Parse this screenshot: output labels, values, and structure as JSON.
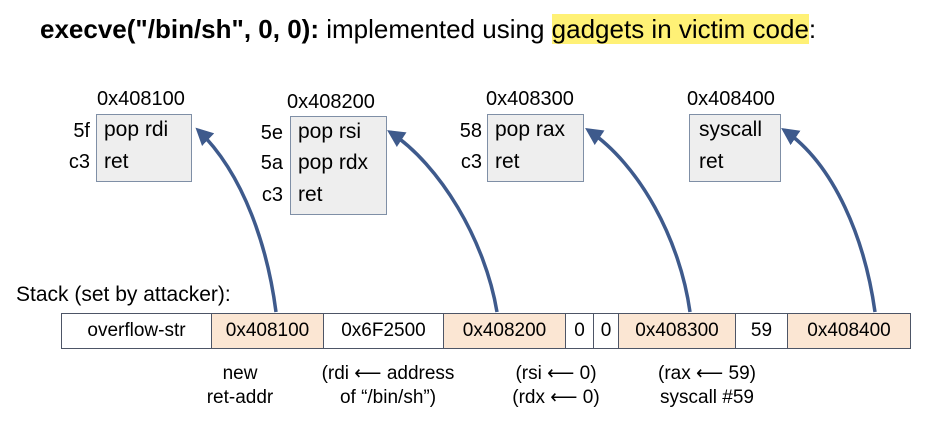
{
  "title": {
    "command": "execve(\"/bin/sh\",  0,  0):",
    "text": " implemented using ",
    "highlight": "gadgets in victim code",
    "tail": ":"
  },
  "gadgets": [
    {
      "address": "0x408100",
      "lines": [
        {
          "byte": "5f",
          "instr": "pop rdi"
        },
        {
          "byte": "c3",
          "instr": "ret"
        }
      ]
    },
    {
      "address": "0x408200",
      "lines": [
        {
          "byte": "5e",
          "instr": "pop rsi"
        },
        {
          "byte": "5a",
          "instr": "pop rdx"
        },
        {
          "byte": "c3",
          "instr": "ret"
        }
      ]
    },
    {
      "address": "0x408300",
      "lines": [
        {
          "byte": "58",
          "instr": "pop rax"
        },
        {
          "byte": "c3",
          "instr": "ret"
        }
      ]
    },
    {
      "address": "0x408400",
      "lines": [
        {
          "byte": "",
          "instr": "syscall"
        },
        {
          "byte": "",
          "instr": "ret"
        }
      ]
    }
  ],
  "stack_label": "Stack (set by attacker):",
  "stack": [
    {
      "text": "overflow-str",
      "highlight": false
    },
    {
      "text": "0x408100",
      "highlight": true
    },
    {
      "text": "0x6F2500",
      "highlight": false
    },
    {
      "text": "0x408200",
      "highlight": true
    },
    {
      "text": "0",
      "highlight": false
    },
    {
      "text": "0",
      "highlight": false
    },
    {
      "text": "0x408300",
      "highlight": true
    },
    {
      "text": "59",
      "highlight": false
    },
    {
      "text": "0x408400",
      "highlight": true
    }
  ],
  "notes": [
    {
      "line1": "new",
      "line2": "ret-addr"
    },
    {
      "line1": "(rdi ⟵ address",
      "line2": "of “/bin/sh”)"
    },
    {
      "line1": "(rsi ⟵ 0)",
      "line2": "(rdx ⟵ 0)"
    },
    {
      "line1": "(rax ⟵ 59)",
      "line2": "syscall #59"
    }
  ],
  "colors": {
    "highlight": "#fff176",
    "stack_highlight": "#fbe6d3",
    "arrow": "#3e5a8c",
    "box": "#eeeeee"
  }
}
